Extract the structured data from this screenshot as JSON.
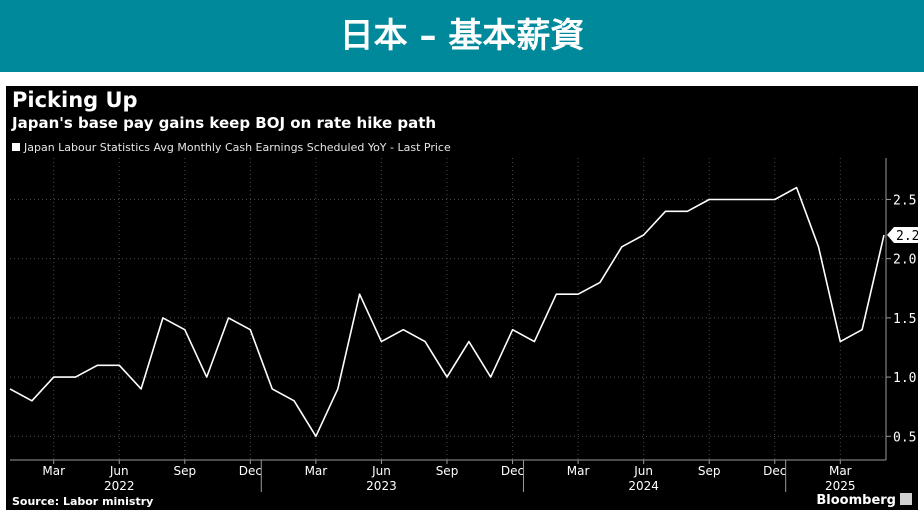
{
  "banner": {
    "title": "日本 – 基本薪資"
  },
  "header": {
    "title": "Picking Up",
    "subtitle": "Japan's base pay gains keep BOJ on rate hike path"
  },
  "legend": {
    "label": "Japan Labour Statistics Avg Monthly Cash Earnings Scheduled YoY - Last Price"
  },
  "footer": {
    "source": "Source: Labor ministry",
    "brand": "Bloomberg"
  },
  "colors": {
    "banner": "#00889b",
    "panel": "#000000",
    "line": "#ffffff",
    "grid": "#4a4a4a"
  },
  "chart_data": {
    "type": "line",
    "title": "Picking Up",
    "subtitle": "Japan's base pay gains keep BOJ on rate hike path",
    "series": [
      {
        "name": "Japan Labour Statistics Avg Monthly Cash Earnings Scheduled YoY - Last Price",
        "last_value_label": "2.2",
        "values": [
          0.9,
          0.8,
          1.0,
          1.0,
          1.1,
          1.1,
          0.9,
          1.5,
          1.4,
          1.0,
          1.5,
          1.4,
          0.9,
          0.8,
          0.5,
          0.9,
          1.7,
          1.3,
          1.4,
          1.3,
          1.0,
          1.3,
          1.0,
          1.4,
          1.3,
          1.7,
          1.7,
          1.8,
          2.1,
          2.2,
          2.4,
          2.4,
          2.5,
          2.5,
          2.5,
          2.5,
          2.6,
          2.1,
          1.3,
          1.4,
          2.2
        ]
      }
    ],
    "x_start": "Jan 2022",
    "x_ticks": [
      {
        "index": 2,
        "label": "Mar"
      },
      {
        "index": 5,
        "label": "Jun"
      },
      {
        "index": 8,
        "label": "Sep"
      },
      {
        "index": 11,
        "label": "Dec"
      },
      {
        "index": 14,
        "label": "Mar"
      },
      {
        "index": 17,
        "label": "Jun"
      },
      {
        "index": 20,
        "label": "Sep"
      },
      {
        "index": 23,
        "label": "Dec"
      },
      {
        "index": 26,
        "label": "Mar"
      },
      {
        "index": 29,
        "label": "Jun"
      },
      {
        "index": 32,
        "label": "Sep"
      },
      {
        "index": 35,
        "label": "Dec"
      },
      {
        "index": 38,
        "label": "Mar"
      }
    ],
    "year_labels": [
      {
        "index": 5,
        "label": "2022"
      },
      {
        "index": 17,
        "label": "2023"
      },
      {
        "index": 29,
        "label": "2024"
      },
      {
        "index": 38,
        "label": "2025"
      }
    ],
    "year_dividers": [
      11.5,
      23.5,
      35.5
    ],
    "y_ticks": [
      0.5,
      1.0,
      1.5,
      2.0,
      2.5
    ],
    "y_tick_labels": [
      "0.5",
      "1.0",
      "1.5",
      "2.0",
      "2.5"
    ],
    "ylim": [
      0.3,
      2.85
    ],
    "grid": "vertical-dotted",
    "legend_position": "top-left"
  }
}
